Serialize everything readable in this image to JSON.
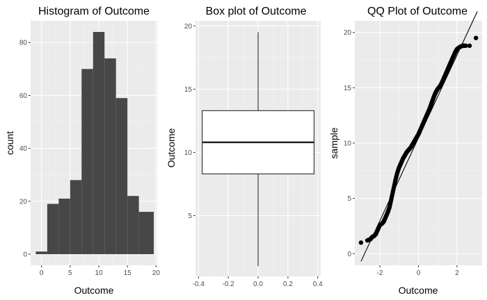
{
  "colors": {
    "panel_background": "#ebebeb",
    "major_grid": "#ffffff",
    "bar_fill": "#474747",
    "box_fill": "#ffffff",
    "ink": "#1a1a1a",
    "tick_text": "#4d4d4d"
  },
  "chart_data": [
    {
      "type": "bar",
      "title": "Histogram of Outcome",
      "xlabel": "Outcome",
      "ylabel": "count",
      "xlim": [
        -1.9,
        20.2
      ],
      "ylim": [
        -4.2,
        88.2
      ],
      "grid": true,
      "x_ticks": [
        0,
        5,
        10,
        15,
        20
      ],
      "y_ticks": [
        0,
        20,
        40,
        60,
        80
      ],
      "bin_width": 2,
      "bins": [
        {
          "start": -1,
          "end": 1,
          "count": 1
        },
        {
          "start": 1,
          "end": 3,
          "count": 19
        },
        {
          "start": 3,
          "end": 5,
          "count": 21
        },
        {
          "start": 5,
          "end": 7,
          "count": 28
        },
        {
          "start": 7,
          "end": 9,
          "count": 70
        },
        {
          "start": 9,
          "end": 11,
          "count": 84
        },
        {
          "start": 11,
          "end": 13,
          "count": 74
        },
        {
          "start": 13,
          "end": 15,
          "count": 59
        },
        {
          "start": 15,
          "end": 17,
          "count": 22
        },
        {
          "start": 17,
          "end": 19.6,
          "count": 16
        }
      ]
    },
    {
      "type": "box",
      "title": "Box plot of Outcome",
      "xlabel": "",
      "ylabel": "Outcome",
      "xlim": [
        -0.42,
        0.42
      ],
      "ylim": [
        0.2,
        20.4
      ],
      "grid": true,
      "x_ticks": [
        -0.4,
        -0.2,
        0.0,
        0.2,
        0.4
      ],
      "y_ticks": [
        5,
        10,
        15,
        20
      ],
      "box": {
        "x_left": -0.375,
        "x_right": 0.375,
        "x_center": 0,
        "whisker_low": 1.0,
        "q1": 8.3,
        "median": 10.8,
        "q3": 13.3,
        "whisker_high": 19.5
      }
    },
    {
      "type": "scatter",
      "title": "QQ Plot of Outcome",
      "xlabel": "Outcome",
      "ylabel": "sample",
      "xlim": [
        -3.3,
        3.3
      ],
      "ylim": [
        -1.05,
        21.05
      ],
      "grid": true,
      "x_ticks": [
        -2,
        0,
        2
      ],
      "y_ticks": [
        0,
        5,
        10,
        15,
        20
      ],
      "reference_line": {
        "x1": -2.98,
        "y1": -0.7,
        "x2": 3.05,
        "y2": 21.9
      },
      "points": [
        [
          -2.98,
          1.0
        ],
        [
          -2.65,
          1.2
        ],
        [
          -2.5,
          1.3
        ],
        [
          -2.4,
          1.5
        ],
        [
          -2.3,
          1.6
        ],
        [
          -2.2,
          1.8
        ],
        [
          -2.1,
          2.2
        ],
        [
          -2.0,
          2.6
        ],
        [
          -1.9,
          2.7
        ],
        [
          -1.8,
          2.9
        ],
        [
          -1.7,
          3.3
        ],
        [
          -1.6,
          3.7
        ],
        [
          -1.5,
          4.2
        ],
        [
          -1.4,
          5.0
        ],
        [
          -1.3,
          5.8
        ],
        [
          -1.2,
          6.6
        ],
        [
          -1.1,
          7.3
        ],
        [
          -1.0,
          7.8
        ],
        [
          -0.9,
          8.2
        ],
        [
          -0.8,
          8.6
        ],
        [
          -0.7,
          8.9
        ],
        [
          -0.6,
          9.2
        ],
        [
          -0.5,
          9.4
        ],
        [
          -0.4,
          9.6
        ],
        [
          -0.3,
          9.9
        ],
        [
          -0.2,
          10.2
        ],
        [
          -0.1,
          10.5
        ],
        [
          0.0,
          10.8
        ],
        [
          0.1,
          11.2
        ],
        [
          0.2,
          11.6
        ],
        [
          0.3,
          12.0
        ],
        [
          0.4,
          12.4
        ],
        [
          0.5,
          12.8
        ],
        [
          0.6,
          13.2
        ],
        [
          0.7,
          13.7
        ],
        [
          0.8,
          14.2
        ],
        [
          0.9,
          14.6
        ],
        [
          1.0,
          14.9
        ],
        [
          1.1,
          15.1
        ],
        [
          1.2,
          15.4
        ],
        [
          1.3,
          15.8
        ],
        [
          1.4,
          16.2
        ],
        [
          1.5,
          16.6
        ],
        [
          1.6,
          17.0
        ],
        [
          1.7,
          17.4
        ],
        [
          1.8,
          17.8
        ],
        [
          1.9,
          18.2
        ],
        [
          2.0,
          18.5
        ],
        [
          2.15,
          18.7
        ],
        [
          2.3,
          18.8
        ],
        [
          2.45,
          18.8
        ],
        [
          2.65,
          18.8
        ],
        [
          2.98,
          19.5
        ]
      ]
    }
  ]
}
